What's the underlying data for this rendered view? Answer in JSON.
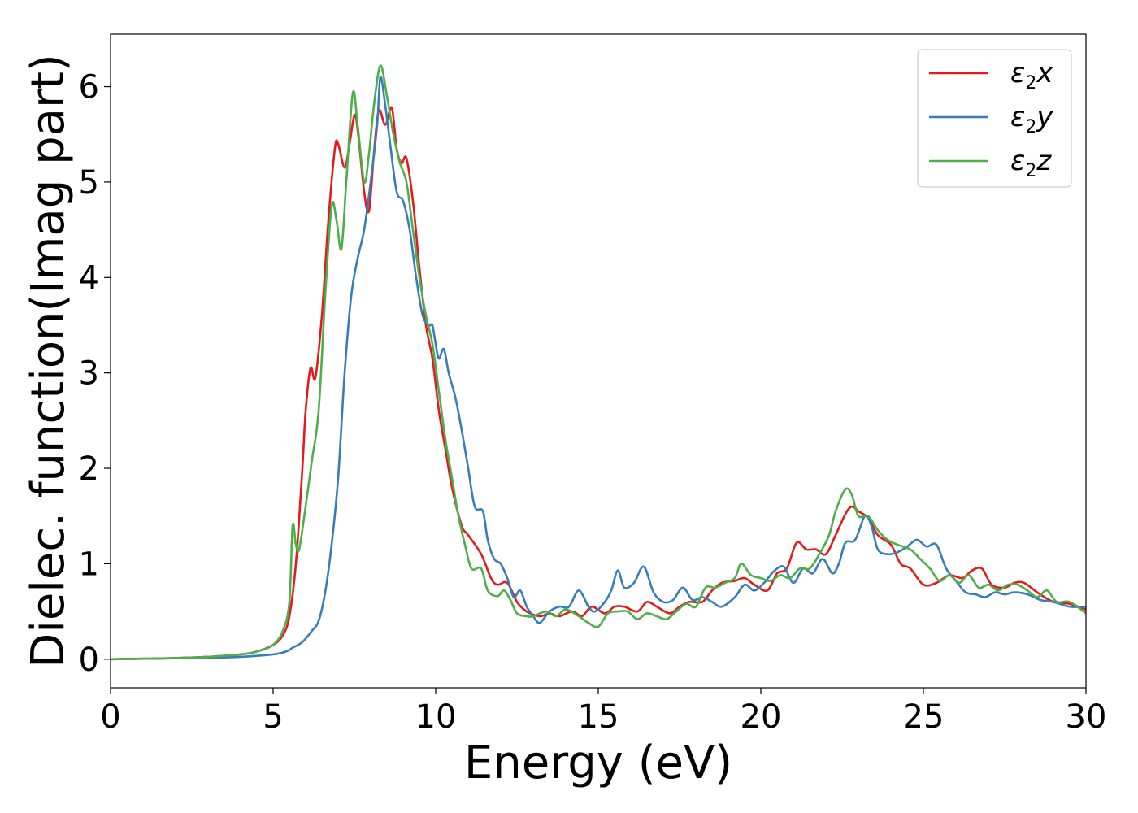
{
  "chart_data": {
    "type": "line",
    "xlabel": "Energy (eV)",
    "ylabel": "Dielec. function(Imag part)",
    "xlim": [
      0,
      30
    ],
    "ylim": [
      -0.3,
      6.55
    ],
    "xticks": [
      0,
      5,
      10,
      15,
      20,
      25,
      30
    ],
    "yticks": [
      0,
      1,
      2,
      3,
      4,
      5,
      6
    ],
    "grid": false,
    "legend_position": "top-right",
    "series": [
      {
        "name": "ε2x",
        "legend": {
          "base": "ε",
          "sub": "2",
          "axis": "x"
        },
        "color": "#e41a1c",
        "points": [
          [
            0,
            0
          ],
          [
            1,
            0.005
          ],
          [
            2,
            0.012
          ],
          [
            3,
            0.025
          ],
          [
            4,
            0.05
          ],
          [
            4.5,
            0.08
          ],
          [
            5,
            0.15
          ],
          [
            5.3,
            0.25
          ],
          [
            5.5,
            0.45
          ],
          [
            5.7,
            1.0
          ],
          [
            5.9,
            2.0
          ],
          [
            6.0,
            2.6
          ],
          [
            6.15,
            3.05
          ],
          [
            6.3,
            2.95
          ],
          [
            6.5,
            3.6
          ],
          [
            6.7,
            4.6
          ],
          [
            6.9,
            5.35
          ],
          [
            7.0,
            5.4
          ],
          [
            7.2,
            5.15
          ],
          [
            7.35,
            5.4
          ],
          [
            7.5,
            5.7
          ],
          [
            7.6,
            5.55
          ],
          [
            7.8,
            4.9
          ],
          [
            7.95,
            4.7
          ],
          [
            8.1,
            5.3
          ],
          [
            8.25,
            5.75
          ],
          [
            8.45,
            5.6
          ],
          [
            8.65,
            5.78
          ],
          [
            8.8,
            5.35
          ],
          [
            8.95,
            5.2
          ],
          [
            9.1,
            5.25
          ],
          [
            9.3,
            4.8
          ],
          [
            9.5,
            4.1
          ],
          [
            9.7,
            3.5
          ],
          [
            9.9,
            3.15
          ],
          [
            10.1,
            2.6
          ],
          [
            10.3,
            2.2
          ],
          [
            10.5,
            1.8
          ],
          [
            10.8,
            1.4
          ],
          [
            11.0,
            1.3
          ],
          [
            11.4,
            1.1
          ],
          [
            11.7,
            0.85
          ],
          [
            11.9,
            0.78
          ],
          [
            12.2,
            0.8
          ],
          [
            12.5,
            0.6
          ],
          [
            12.8,
            0.5
          ],
          [
            13.2,
            0.45
          ],
          [
            13.5,
            0.48
          ],
          [
            13.8,
            0.45
          ],
          [
            14.2,
            0.5
          ],
          [
            14.5,
            0.45
          ],
          [
            14.8,
            0.55
          ],
          [
            15.2,
            0.48
          ],
          [
            15.5,
            0.55
          ],
          [
            15.8,
            0.55
          ],
          [
            16.2,
            0.5
          ],
          [
            16.5,
            0.6
          ],
          [
            16.8,
            0.55
          ],
          [
            17.2,
            0.48
          ],
          [
            17.5,
            0.55
          ],
          [
            17.8,
            0.6
          ],
          [
            18.2,
            0.6
          ],
          [
            18.5,
            0.72
          ],
          [
            18.8,
            0.8
          ],
          [
            19.2,
            0.82
          ],
          [
            19.5,
            0.85
          ],
          [
            19.8,
            0.78
          ],
          [
            20.2,
            0.72
          ],
          [
            20.5,
            0.9
          ],
          [
            20.8,
            0.95
          ],
          [
            21.1,
            1.22
          ],
          [
            21.4,
            1.15
          ],
          [
            21.7,
            1.15
          ],
          [
            22.0,
            1.1
          ],
          [
            22.3,
            1.3
          ],
          [
            22.6,
            1.52
          ],
          [
            22.8,
            1.6
          ],
          [
            23.0,
            1.55
          ],
          [
            23.3,
            1.48
          ],
          [
            23.6,
            1.3
          ],
          [
            24.0,
            1.2
          ],
          [
            24.3,
            1.0
          ],
          [
            24.6,
            0.95
          ],
          [
            25.0,
            0.78
          ],
          [
            25.4,
            0.8
          ],
          [
            25.8,
            0.88
          ],
          [
            26.2,
            0.85
          ],
          [
            26.5,
            0.93
          ],
          [
            26.8,
            0.95
          ],
          [
            27.1,
            0.78
          ],
          [
            27.5,
            0.75
          ],
          [
            27.8,
            0.8
          ],
          [
            28.1,
            0.8
          ],
          [
            28.5,
            0.7
          ],
          [
            29.0,
            0.6
          ],
          [
            29.5,
            0.58
          ],
          [
            30,
            0.52
          ]
        ]
      },
      {
        "name": "ε2y",
        "legend": {
          "base": "ε",
          "sub": "2",
          "axis": "y"
        },
        "color": "#377eb8",
        "points": [
          [
            0,
            0
          ],
          [
            1,
            0.005
          ],
          [
            2,
            0.01
          ],
          [
            3,
            0.015
          ],
          [
            4,
            0.025
          ],
          [
            5,
            0.05
          ],
          [
            5.4,
            0.08
          ],
          [
            5.6,
            0.12
          ],
          [
            5.9,
            0.18
          ],
          [
            6.2,
            0.3
          ],
          [
            6.4,
            0.4
          ],
          [
            6.6,
            0.7
          ],
          [
            6.8,
            1.2
          ],
          [
            7.0,
            1.9
          ],
          [
            7.2,
            3.0
          ],
          [
            7.4,
            3.8
          ],
          [
            7.6,
            4.2
          ],
          [
            7.8,
            4.5
          ],
          [
            8.0,
            5.0
          ],
          [
            8.2,
            5.6
          ],
          [
            8.3,
            6.1
          ],
          [
            8.45,
            5.8
          ],
          [
            8.6,
            5.4
          ],
          [
            8.8,
            4.9
          ],
          [
            9.0,
            4.8
          ],
          [
            9.2,
            4.5
          ],
          [
            9.4,
            4.0
          ],
          [
            9.6,
            3.6
          ],
          [
            9.8,
            3.5
          ],
          [
            9.9,
            3.5
          ],
          [
            10.0,
            3.3
          ],
          [
            10.1,
            3.15
          ],
          [
            10.25,
            3.25
          ],
          [
            10.4,
            3.0
          ],
          [
            10.6,
            2.75
          ],
          [
            10.8,
            2.4
          ],
          [
            11.0,
            2.0
          ],
          [
            11.2,
            1.6
          ],
          [
            11.45,
            1.55
          ],
          [
            11.6,
            1.25
          ],
          [
            11.8,
            1.05
          ],
          [
            12.0,
            1.0
          ],
          [
            12.2,
            0.85
          ],
          [
            12.4,
            0.65
          ],
          [
            12.6,
            0.72
          ],
          [
            12.8,
            0.55
          ],
          [
            13.0,
            0.45
          ],
          [
            13.2,
            0.38
          ],
          [
            13.5,
            0.5
          ],
          [
            13.8,
            0.55
          ],
          [
            14.1,
            0.55
          ],
          [
            14.4,
            0.72
          ],
          [
            14.7,
            0.55
          ],
          [
            14.9,
            0.5
          ],
          [
            15.2,
            0.6
          ],
          [
            15.4,
            0.72
          ],
          [
            15.6,
            0.93
          ],
          [
            15.8,
            0.75
          ],
          [
            16.1,
            0.8
          ],
          [
            16.4,
            0.97
          ],
          [
            16.7,
            0.7
          ],
          [
            17.0,
            0.6
          ],
          [
            17.3,
            0.62
          ],
          [
            17.6,
            0.75
          ],
          [
            17.9,
            0.62
          ],
          [
            18.2,
            0.65
          ],
          [
            18.5,
            0.6
          ],
          [
            18.8,
            0.55
          ],
          [
            19.2,
            0.65
          ],
          [
            19.5,
            0.78
          ],
          [
            19.8,
            0.72
          ],
          [
            20.1,
            0.8
          ],
          [
            20.4,
            0.92
          ],
          [
            20.7,
            0.97
          ],
          [
            21.0,
            0.8
          ],
          [
            21.3,
            0.95
          ],
          [
            21.6,
            0.9
          ],
          [
            21.9,
            1.05
          ],
          [
            22.2,
            0.9
          ],
          [
            22.4,
            1.0
          ],
          [
            22.6,
            1.22
          ],
          [
            22.9,
            1.25
          ],
          [
            23.2,
            1.5
          ],
          [
            23.4,
            1.4
          ],
          [
            23.6,
            1.15
          ],
          [
            23.9,
            1.1
          ],
          [
            24.2,
            1.12
          ],
          [
            24.5,
            1.18
          ],
          [
            24.8,
            1.25
          ],
          [
            25.1,
            1.18
          ],
          [
            25.4,
            1.2
          ],
          [
            25.7,
            0.95
          ],
          [
            26.0,
            0.82
          ],
          [
            26.3,
            0.7
          ],
          [
            26.6,
            0.68
          ],
          [
            26.9,
            0.65
          ],
          [
            27.2,
            0.7
          ],
          [
            27.5,
            0.68
          ],
          [
            27.8,
            0.7
          ],
          [
            28.2,
            0.68
          ],
          [
            28.6,
            0.62
          ],
          [
            29.0,
            0.6
          ],
          [
            29.5,
            0.55
          ],
          [
            30,
            0.55
          ]
        ]
      },
      {
        "name": "ε2z",
        "legend": {
          "base": "ε",
          "sub": "2",
          "axis": "z"
        },
        "color": "#4daf4a",
        "points": [
          [
            0,
            0
          ],
          [
            1,
            0.005
          ],
          [
            2,
            0.012
          ],
          [
            3,
            0.025
          ],
          [
            4,
            0.05
          ],
          [
            4.5,
            0.08
          ],
          [
            5,
            0.15
          ],
          [
            5.3,
            0.3
          ],
          [
            5.5,
            0.6
          ],
          [
            5.6,
            1.4
          ],
          [
            5.7,
            1.2
          ],
          [
            5.8,
            1.15
          ],
          [
            6.0,
            1.6
          ],
          [
            6.2,
            2.1
          ],
          [
            6.4,
            2.6
          ],
          [
            6.6,
            3.8
          ],
          [
            6.8,
            4.75
          ],
          [
            6.95,
            4.6
          ],
          [
            7.1,
            4.3
          ],
          [
            7.25,
            5.0
          ],
          [
            7.45,
            5.93
          ],
          [
            7.6,
            5.6
          ],
          [
            7.8,
            5.0
          ],
          [
            7.95,
            5.3
          ],
          [
            8.1,
            5.8
          ],
          [
            8.3,
            6.22
          ],
          [
            8.5,
            5.9
          ],
          [
            8.7,
            5.5
          ],
          [
            8.9,
            5.2
          ],
          [
            9.1,
            5.0
          ],
          [
            9.3,
            4.5
          ],
          [
            9.5,
            4.0
          ],
          [
            9.7,
            3.6
          ],
          [
            9.9,
            3.3
          ],
          [
            10.1,
            2.8
          ],
          [
            10.3,
            2.3
          ],
          [
            10.5,
            1.9
          ],
          [
            10.7,
            1.5
          ],
          [
            10.9,
            1.2
          ],
          [
            11.1,
            0.95
          ],
          [
            11.4,
            0.95
          ],
          [
            11.6,
            0.72
          ],
          [
            11.9,
            0.66
          ],
          [
            12.1,
            0.72
          ],
          [
            12.3,
            0.62
          ],
          [
            12.5,
            0.48
          ],
          [
            12.8,
            0.45
          ],
          [
            13.0,
            0.45
          ],
          [
            13.4,
            0.5
          ],
          [
            13.7,
            0.45
          ],
          [
            14.0,
            0.52
          ],
          [
            14.4,
            0.45
          ],
          [
            14.7,
            0.38
          ],
          [
            15.0,
            0.34
          ],
          [
            15.3,
            0.48
          ],
          [
            15.6,
            0.5
          ],
          [
            15.9,
            0.5
          ],
          [
            16.2,
            0.42
          ],
          [
            16.5,
            0.48
          ],
          [
            16.8,
            0.45
          ],
          [
            17.1,
            0.42
          ],
          [
            17.4,
            0.5
          ],
          [
            17.7,
            0.58
          ],
          [
            18.0,
            0.55
          ],
          [
            18.3,
            0.75
          ],
          [
            18.6,
            0.75
          ],
          [
            18.9,
            0.8
          ],
          [
            19.2,
            0.85
          ],
          [
            19.4,
            1.0
          ],
          [
            19.7,
            0.88
          ],
          [
            20.0,
            0.85
          ],
          [
            20.3,
            0.82
          ],
          [
            20.6,
            0.88
          ],
          [
            20.9,
            0.85
          ],
          [
            21.2,
            0.95
          ],
          [
            21.5,
            0.95
          ],
          [
            21.8,
            1.1
          ],
          [
            22.1,
            1.3
          ],
          [
            22.3,
            1.55
          ],
          [
            22.6,
            1.78
          ],
          [
            22.8,
            1.72
          ],
          [
            23.0,
            1.5
          ],
          [
            23.3,
            1.5
          ],
          [
            23.6,
            1.35
          ],
          [
            23.9,
            1.25
          ],
          [
            24.2,
            1.2
          ],
          [
            24.6,
            1.15
          ],
          [
            24.9,
            1.05
          ],
          [
            25.2,
            0.95
          ],
          [
            25.5,
            0.82
          ],
          [
            25.8,
            0.88
          ],
          [
            26.1,
            0.8
          ],
          [
            26.4,
            0.88
          ],
          [
            26.7,
            0.75
          ],
          [
            27.0,
            0.78
          ],
          [
            27.3,
            0.72
          ],
          [
            27.6,
            0.78
          ],
          [
            27.9,
            0.78
          ],
          [
            28.2,
            0.72
          ],
          [
            28.5,
            0.65
          ],
          [
            28.8,
            0.72
          ],
          [
            29.1,
            0.6
          ],
          [
            29.5,
            0.6
          ],
          [
            30,
            0.48
          ]
        ]
      }
    ]
  }
}
